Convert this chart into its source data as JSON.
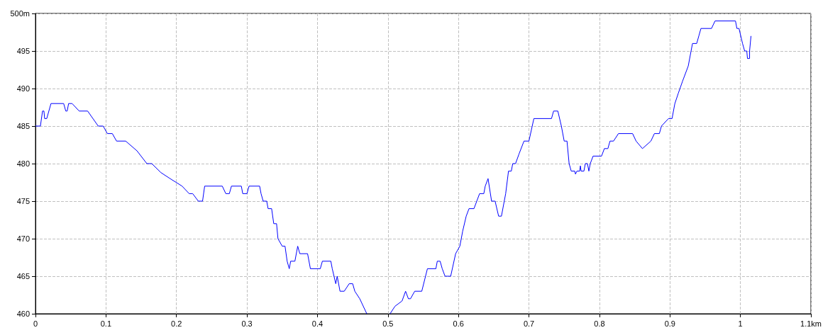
{
  "chart_data": {
    "type": "line",
    "x": [
      0,
      0.007,
      0.01,
      0.012,
      0.013,
      0.016,
      0.022,
      0.04,
      0.043,
      0.045,
      0.047,
      0.052,
      0.062,
      0.074,
      0.089,
      0.096,
      0.102,
      0.109,
      0.115,
      0.128,
      0.144,
      0.158,
      0.165,
      0.178,
      0.191,
      0.208,
      0.218,
      0.223,
      0.231,
      0.237,
      0.24,
      0.265,
      0.27,
      0.275,
      0.278,
      0.292,
      0.294,
      0.3,
      0.303,
      0.318,
      0.32,
      0.323,
      0.328,
      0.33,
      0.335,
      0.338,
      0.342,
      0.344,
      0.35,
      0.354,
      0.357,
      0.36,
      0.362,
      0.368,
      0.372,
      0.375,
      0.386,
      0.39,
      0.404,
      0.407,
      0.419,
      0.421,
      0.426,
      0.428,
      0.432,
      0.438,
      0.445,
      0.45,
      0.453,
      0.46,
      0.47,
      0.487,
      0.503,
      0.51,
      0.52,
      0.525,
      0.529,
      0.532,
      0.538,
      0.548,
      0.556,
      0.568,
      0.57,
      0.574,
      0.577,
      0.581,
      0.589,
      0.596,
      0.602,
      0.606,
      0.611,
      0.615,
      0.622,
      0.626,
      0.63,
      0.636,
      0.638,
      0.642,
      0.647,
      0.652,
      0.657,
      0.661,
      0.667,
      0.671,
      0.675,
      0.677,
      0.681,
      0.686,
      0.693,
      0.7,
      0.707,
      0.732,
      0.735,
      0.741,
      0.746,
      0.75,
      0.754,
      0.757,
      0.76,
      0.765,
      0.766,
      0.768,
      0.772,
      0.773,
      0.774,
      0.778,
      0.78,
      0.783,
      0.785,
      0.787,
      0.791,
      0.803,
      0.807,
      0.812,
      0.815,
      0.82,
      0.827,
      0.847,
      0.852,
      0.861,
      0.873,
      0.878,
      0.885,
      0.888,
      0.898,
      0.903,
      0.907,
      0.912,
      0.918,
      0.926,
      0.932,
      0.938,
      0.941,
      0.944,
      0.959,
      0.964,
      0.993,
      0.995,
      0.998,
      1.003,
      1.006,
      1.009,
      1.01,
      1.013,
      1.013,
      1.015
    ],
    "values": [
      485,
      485,
      487,
      487,
      486,
      486,
      488,
      488,
      487,
      487,
      488,
      488,
      487,
      487,
      485,
      485,
      484,
      484,
      483,
      483,
      481.7,
      480,
      480,
      478.8,
      478,
      477,
      476,
      476,
      475,
      475,
      477,
      477,
      476,
      476,
      477,
      477,
      476,
      476,
      477,
      477,
      476,
      475,
      475,
      474,
      474,
      472,
      472,
      470,
      469,
      469,
      467,
      466,
      467,
      467,
      469,
      468,
      468,
      466,
      466,
      467,
      467,
      466,
      464,
      465,
      463,
      463,
      464,
      464,
      463,
      462,
      460,
      null,
      460,
      461,
      461.7,
      463,
      462,
      462,
      463,
      463,
      466,
      466,
      467,
      467,
      466,
      465,
      465,
      468,
      469,
      471,
      473,
      474,
      474,
      475,
      476,
      476,
      477,
      478,
      475,
      475,
      473,
      473,
      476,
      479,
      479,
      480,
      480,
      481.3,
      483,
      483,
      486,
      486,
      487,
      487,
      485,
      483,
      483,
      480,
      479,
      479,
      478.6,
      479,
      479,
      479.7,
      479,
      479,
      480,
      480,
      479,
      480,
      481,
      481,
      482,
      482,
      483,
      483,
      484,
      484,
      483,
      482,
      483,
      484,
      484,
      485,
      486,
      486,
      488,
      489.4,
      491,
      493,
      496,
      496,
      497,
      498,
      498,
      499,
      499,
      498,
      498,
      496,
      495,
      495,
      494,
      494,
      495,
      497
    ],
    "color": "#0000ff",
    "xlim": [
      0,
      1.1
    ],
    "xticks": [
      0,
      0.1,
      0.2,
      0.3,
      0.4,
      0.5,
      0.6,
      0.7,
      0.8,
      0.9,
      1,
      {
        "value": 1.1,
        "label": "1.1km"
      }
    ],
    "ylim": [
      460,
      500
    ],
    "yticks": [
      460,
      465,
      470,
      475,
      480,
      485,
      490,
      495,
      {
        "value": 500,
        "label": "500m"
      }
    ],
    "grid": true
  }
}
